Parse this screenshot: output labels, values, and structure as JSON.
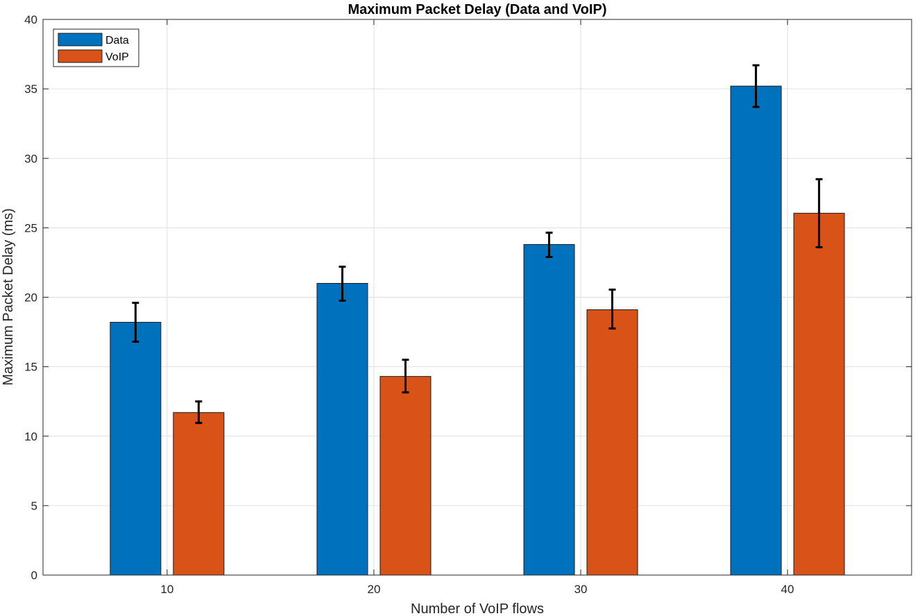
{
  "chart_data": {
    "type": "bar",
    "title": "Maximum Packet Delay (Data and VoIP)",
    "xlabel": "Number of VoIP flows",
    "ylabel": "Maximum Packet Delay (ms)",
    "categories": [
      "10",
      "20",
      "30",
      "40"
    ],
    "ylim": [
      0,
      40
    ],
    "yticks": [
      0,
      5,
      10,
      15,
      20,
      25,
      30,
      35,
      40
    ],
    "yticks_labels": [
      "0",
      "5",
      "10",
      "15",
      "20",
      "25",
      "30",
      "35",
      "40"
    ],
    "grid": true,
    "legend_position": "top-left",
    "series": [
      {
        "name": "Data",
        "color": "#0072BD",
        "values": [
          18.2,
          21.0,
          23.8,
          35.2
        ],
        "err_low": [
          16.8,
          19.75,
          22.9,
          33.7
        ],
        "err_high": [
          19.6,
          22.2,
          24.65,
          36.7
        ]
      },
      {
        "name": "VoIP",
        "color": "#D95319",
        "values": [
          11.7,
          14.3,
          19.1,
          26.05
        ],
        "err_low": [
          10.95,
          13.15,
          17.75,
          23.6
        ],
        "err_high": [
          12.5,
          15.5,
          20.55,
          28.5
        ]
      }
    ]
  }
}
